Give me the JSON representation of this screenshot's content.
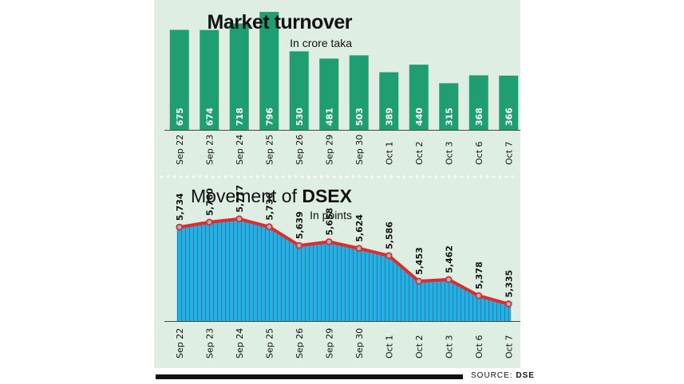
{
  "chart_data": [
    {
      "type": "bar",
      "title": "Market turnover",
      "subtitle": "In crore taka",
      "categories": [
        "Sep 22",
        "Sep 23",
        "Sep 24",
        "Sep 25",
        "Sep 26",
        "Sep 29",
        "Sep 30",
        "Oct 1",
        "Oct 2",
        "Oct 3",
        "Oct 6",
        "Oct 7"
      ],
      "values": [
        675,
        674,
        718,
        796,
        530,
        481,
        503,
        389,
        440,
        315,
        368,
        366
      ],
      "value_labels": [
        "675",
        "674",
        "718",
        "796",
        "530",
        "481",
        "503",
        "389",
        "440",
        "315",
        "368",
        "366"
      ],
      "ylim": [
        0,
        800
      ],
      "color": "#1f9e72"
    },
    {
      "type": "area",
      "title_prefix": "Movement of ",
      "title_bold": "DSEX",
      "subtitle": "In points",
      "categories": [
        "Sep 22",
        "Sep 23",
        "Sep 24",
        "Sep 25",
        "Sep 26",
        "Sep 29",
        "Sep 30",
        "Oct 1",
        "Oct 2",
        "Oct 3",
        "Oct 6",
        "Oct 7"
      ],
      "values": [
        5734,
        5760,
        5777,
        5736,
        5639,
        5658,
        5624,
        5586,
        5453,
        5462,
        5378,
        5335
      ],
      "value_labels": [
        "5,734",
        "5,760",
        "5,777",
        "5,736",
        "5,639",
        "5,658",
        "5,624",
        "5,586",
        "5,453",
        "5,462",
        "5,378",
        "5,335"
      ],
      "ylim": [
        5300,
        5800
      ],
      "line_color": "#e12b2b",
      "fill_color": "#29aee4"
    }
  ],
  "source": {
    "label": "SOURCE:",
    "value": "DSE"
  }
}
